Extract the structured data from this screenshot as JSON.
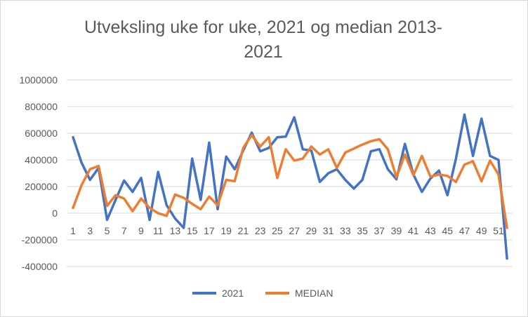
{
  "chart_data": {
    "type": "line",
    "title": "Utveksling uke for uke, 2021 og median 2013-2021",
    "xlabel": "",
    "ylabel": "",
    "ylim": [
      -400000,
      1000000
    ],
    "yticks": [
      -400000,
      -200000,
      0,
      200000,
      400000,
      600000,
      800000,
      1000000
    ],
    "ytick_labels": [
      "-400000",
      "-200000",
      "0",
      "200000",
      "400000",
      "600000",
      "800000",
      "1000000"
    ],
    "x": [
      1,
      2,
      3,
      4,
      5,
      6,
      7,
      8,
      9,
      10,
      11,
      12,
      13,
      14,
      15,
      16,
      17,
      18,
      19,
      20,
      21,
      22,
      23,
      24,
      25,
      26,
      27,
      28,
      29,
      30,
      31,
      32,
      33,
      34,
      35,
      36,
      37,
      38,
      39,
      40,
      41,
      42,
      43,
      44,
      45,
      46,
      47,
      48,
      49,
      50,
      51,
      52
    ],
    "xtick_labels": [
      "1",
      "3",
      "5",
      "7",
      "9",
      "11",
      "13",
      "15",
      "17",
      "19",
      "21",
      "23",
      "25",
      "27",
      "29",
      "31",
      "33",
      "35",
      "37",
      "39",
      "41",
      "43",
      "45",
      "47",
      "49",
      "51"
    ],
    "grid": true,
    "legend_position": "bottom",
    "series": [
      {
        "name": "2021",
        "color": "#4472C4",
        "values": [
          570000,
          380000,
          250000,
          340000,
          -50000,
          100000,
          245000,
          160000,
          265000,
          -50000,
          310000,
          60000,
          -40000,
          -110000,
          410000,
          100000,
          530000,
          30000,
          425000,
          330000,
          470000,
          605000,
          465000,
          490000,
          570000,
          575000,
          720000,
          480000,
          470000,
          235000,
          300000,
          330000,
          250000,
          185000,
          250000,
          465000,
          480000,
          330000,
          255000,
          520000,
          290000,
          160000,
          260000,
          320000,
          135000,
          410000,
          740000,
          430000,
          710000,
          430000,
          400000,
          -340000
        ]
      },
      {
        "name": "MEDIAN",
        "color": "#ED7D31",
        "values": [
          40000,
          210000,
          330000,
          355000,
          55000,
          135000,
          110000,
          15000,
          110000,
          40000,
          0,
          -20000,
          140000,
          115000,
          70000,
          30000,
          125000,
          60000,
          250000,
          240000,
          490000,
          585000,
          500000,
          570000,
          265000,
          480000,
          395000,
          410000,
          500000,
          440000,
          480000,
          340000,
          455000,
          485000,
          515000,
          540000,
          555000,
          480000,
          270000,
          440000,
          285000,
          430000,
          275000,
          290000,
          280000,
          235000,
          365000,
          390000,
          240000,
          395000,
          290000,
          -110000
        ]
      }
    ]
  }
}
